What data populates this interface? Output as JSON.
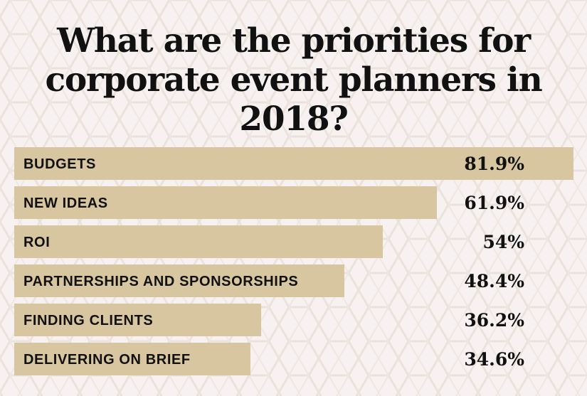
{
  "colors": {
    "background": "#f7f2f1",
    "bar": "#d8c6a0",
    "text": "#111111",
    "pattern": "#ece2dc"
  },
  "header": {
    "title_line1": "What are the priorities for",
    "title_line2": "corporate event planners in 2018?"
  },
  "chart_data": {
    "type": "bar",
    "orientation": "horizontal",
    "title": "What are the priorities for corporate event planners in 2018?",
    "categories": [
      "BUDGETS",
      "NEW IDEAS",
      "ROI",
      "PARTNERSHIPS AND SPONSORSHIPS",
      "FINDING CLIENTS",
      "DELIVERING ON BRIEF"
    ],
    "values": [
      81.9,
      61.9,
      54,
      48.4,
      36.2,
      34.6
    ],
    "value_labels": [
      "81.9%",
      "61.9%",
      "54%",
      "48.4%",
      "36.2%",
      "34.6%"
    ],
    "xlim": [
      0,
      81.9
    ],
    "grid": false,
    "legend": "none"
  }
}
